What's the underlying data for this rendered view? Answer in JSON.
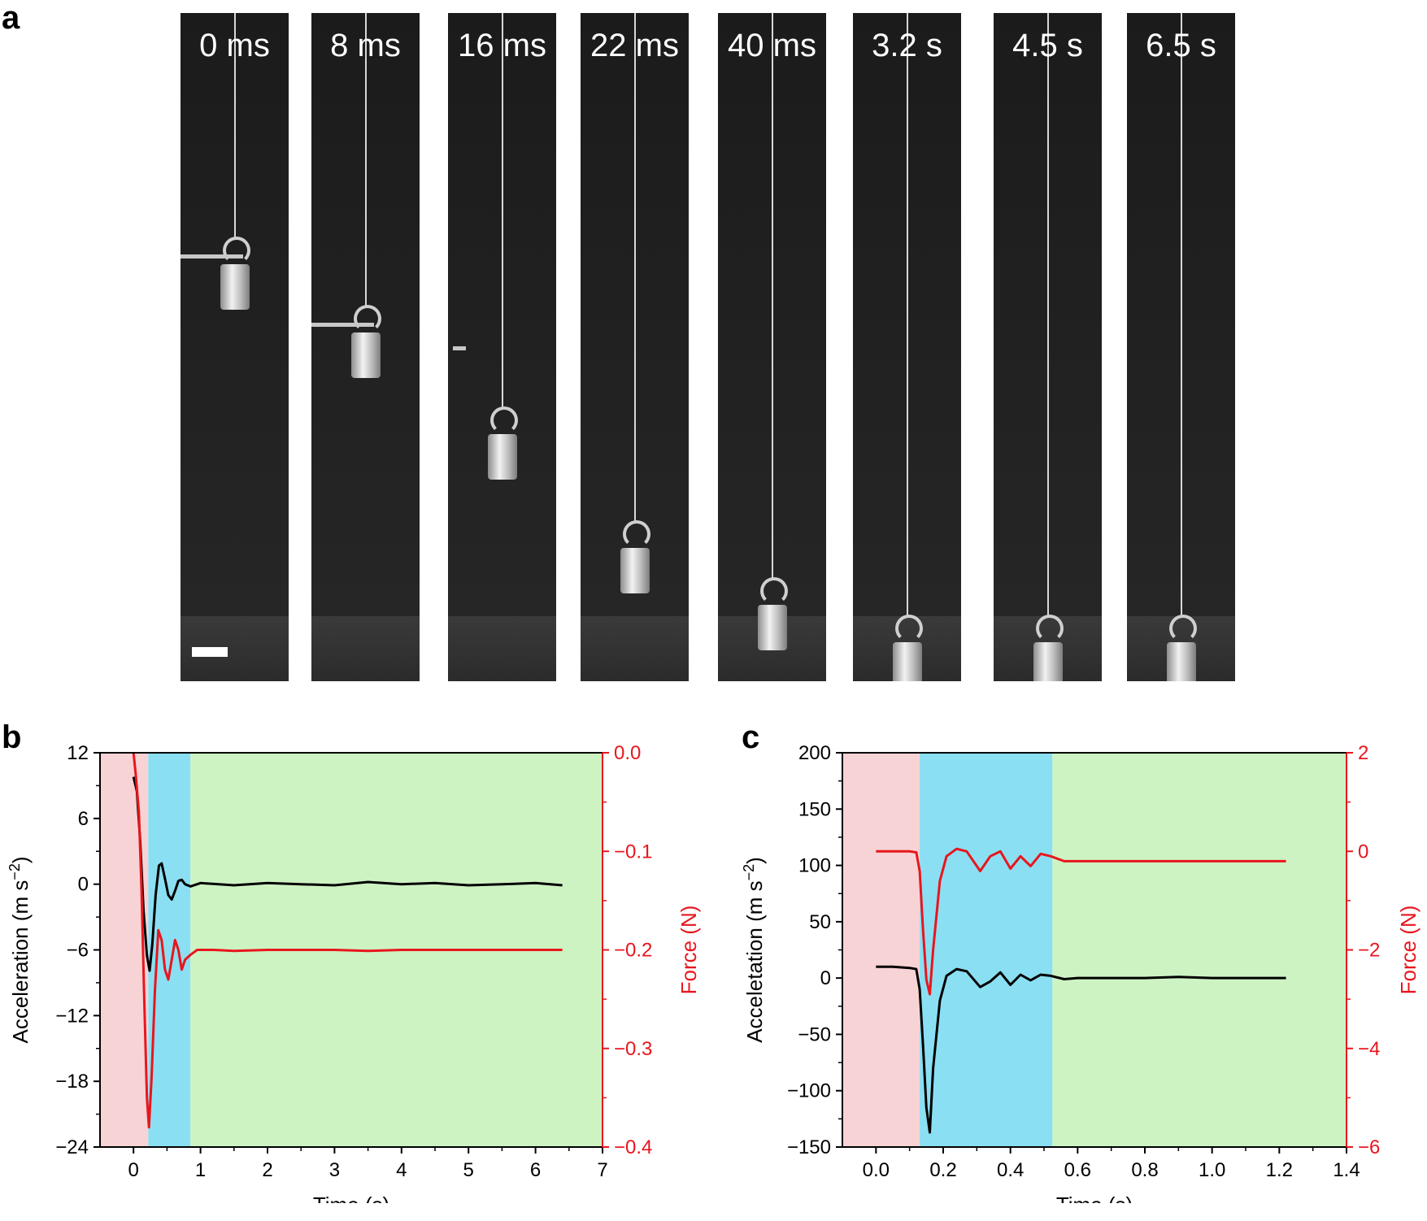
{
  "panels": {
    "a": {
      "letter": "a"
    },
    "b": {
      "letter": "b"
    },
    "c": {
      "letter": "c"
    }
  },
  "frames": [
    {
      "label": "0 ms",
      "drop": 0.0,
      "landed": false,
      "scale_bar": true,
      "blade": "at-hook"
    },
    {
      "label": "8 ms",
      "drop": 0.18,
      "landed": false,
      "scale_bar": false,
      "blade": "at-hook"
    },
    {
      "label": "16 ms",
      "drop": 0.45,
      "landed": false,
      "scale_bar": false,
      "blade": "small"
    },
    {
      "label": "22 ms",
      "drop": 0.75,
      "landed": false,
      "scale_bar": false,
      "blade": "none"
    },
    {
      "label": "40 ms",
      "drop": 0.9,
      "landed": false,
      "scale_bar": false,
      "blade": "none"
    },
    {
      "label": "3.2 s",
      "drop": 1.0,
      "landed": true,
      "scale_bar": false,
      "blade": "none"
    },
    {
      "label": "4.5 s",
      "drop": 1.0,
      "landed": true,
      "scale_bar": false,
      "blade": "none"
    },
    {
      "label": "6.5 s",
      "drop": 1.0,
      "landed": true,
      "scale_bar": false,
      "blade": "none"
    }
  ],
  "colors": {
    "acceleration": "#000000",
    "force": "#e8161d",
    "region_pink": "#f7d3d5",
    "region_blue": "#8bdff3",
    "region_green": "#cdf3c3"
  },
  "chart_data": [
    {
      "id": "b",
      "type": "line",
      "xlabel": "Time (s)",
      "ylabel": "Acceleration (m s−2)",
      "ylabel_parts": {
        "main": "Acceleration (m s",
        "sup": "−2",
        "end": ")"
      },
      "y2label": "Force (N)",
      "xlim": [
        -0.5,
        7
      ],
      "ylim": [
        -24,
        12
      ],
      "y2lim": [
        -0.4,
        0.0
      ],
      "xticks": [
        0,
        1,
        2,
        3,
        4,
        5,
        6,
        7
      ],
      "xtick_labels": [
        "0",
        "1",
        "2",
        "3",
        "4",
        "5",
        "6",
        "7"
      ],
      "yticks": [
        -24,
        -18,
        -12,
        -6,
        0,
        6,
        12
      ],
      "ytick_labels": [
        "−24",
        "−18",
        "−12",
        "−6",
        "0",
        "6",
        "12"
      ],
      "y2ticks": [
        -0.4,
        -0.3,
        -0.2,
        -0.1,
        0.0
      ],
      "y2tick_labels": [
        "−0.4",
        "−0.3",
        "−0.2",
        "−0.1",
        "0.0"
      ],
      "regions": [
        {
          "from": -0.5,
          "to": 0.22,
          "color": "pink"
        },
        {
          "from": 0.22,
          "to": 0.85,
          "color": "blue"
        },
        {
          "from": 0.85,
          "to": 7.0,
          "color": "green"
        }
      ],
      "series": [
        {
          "axis": "left",
          "color": "acceleration",
          "x": [
            0.0,
            0.05,
            0.1,
            0.15,
            0.2,
            0.24,
            0.28,
            0.33,
            0.38,
            0.42,
            0.47,
            0.52,
            0.57,
            0.62,
            0.67,
            0.72,
            0.77,
            0.85,
            1.0,
            1.5,
            2.0,
            2.5,
            3.0,
            3.5,
            4.0,
            4.5,
            5.0,
            5.5,
            6.0,
            6.4
          ],
          "y": [
            9.8,
            8.5,
            4.0,
            -2.5,
            -6.5,
            -7.9,
            -5.5,
            -1.0,
            1.7,
            1.9,
            0.5,
            -1.0,
            -1.4,
            -0.6,
            0.3,
            0.4,
            0.0,
            -0.2,
            0.1,
            -0.1,
            0.1,
            0.0,
            -0.1,
            0.2,
            0.0,
            0.1,
            -0.1,
            0.0,
            0.1,
            -0.1
          ]
        },
        {
          "axis": "right",
          "color": "force",
          "x": [
            0.0,
            0.03,
            0.08,
            0.12,
            0.16,
            0.2,
            0.23,
            0.27,
            0.32,
            0.37,
            0.42,
            0.47,
            0.52,
            0.57,
            0.62,
            0.67,
            0.72,
            0.77,
            0.85,
            0.95,
            1.2,
            1.5,
            2.0,
            2.5,
            3.0,
            3.5,
            4.0,
            5.0,
            6.0,
            6.4
          ],
          "y": [
            0.0,
            -0.02,
            -0.06,
            -0.14,
            -0.25,
            -0.35,
            -0.38,
            -0.33,
            -0.24,
            -0.18,
            -0.19,
            -0.22,
            -0.23,
            -0.21,
            -0.19,
            -0.2,
            -0.22,
            -0.21,
            -0.205,
            -0.2,
            -0.2,
            -0.201,
            -0.2,
            -0.2,
            -0.2,
            -0.201,
            -0.2,
            -0.2,
            -0.2,
            -0.2
          ]
        }
      ]
    },
    {
      "id": "c",
      "type": "line",
      "xlabel": "Time (s)",
      "ylabel": "Acceletation (m s−2)",
      "ylabel_parts": {
        "main": "Acceletation (m s",
        "sup": "−2",
        "end": ")"
      },
      "y2label": "Force (N)",
      "xlim": [
        -0.1,
        1.4
      ],
      "ylim": [
        -150,
        200
      ],
      "y2lim": [
        -6,
        2
      ],
      "xticks": [
        0.0,
        0.2,
        0.4,
        0.6,
        0.8,
        1.0,
        1.2,
        1.4
      ],
      "xtick_labels": [
        "0.0",
        "0.2",
        "0.4",
        "0.6",
        "0.8",
        "1.0",
        "1.2",
        "1.4"
      ],
      "yticks": [
        -150,
        -100,
        -50,
        0,
        50,
        100,
        150,
        200
      ],
      "ytick_labels": [
        "−150",
        "−100",
        "−50",
        "0",
        "50",
        "100",
        "150",
        "200"
      ],
      "y2ticks": [
        -6,
        -4,
        -2,
        0,
        2
      ],
      "y2tick_labels": [
        "−6",
        "−4",
        "−2",
        "0",
        "2"
      ],
      "regions": [
        {
          "from": -0.1,
          "to": 0.13,
          "color": "pink"
        },
        {
          "from": 0.13,
          "to": 0.525,
          "color": "blue"
        },
        {
          "from": 0.525,
          "to": 1.4,
          "color": "green"
        }
      ],
      "series": [
        {
          "axis": "left",
          "color": "acceleration",
          "x": [
            0.0,
            0.05,
            0.1,
            0.12,
            0.13,
            0.14,
            0.15,
            0.16,
            0.17,
            0.19,
            0.21,
            0.24,
            0.27,
            0.31,
            0.34,
            0.37,
            0.4,
            0.43,
            0.46,
            0.49,
            0.52,
            0.56,
            0.6,
            0.7,
            0.8,
            0.9,
            1.0,
            1.1,
            1.22
          ],
          "y": [
            10,
            10,
            9,
            8,
            -10,
            -60,
            -115,
            -137,
            -80,
            -20,
            2,
            8,
            6,
            -8,
            -3,
            5,
            -6,
            3,
            -2,
            3,
            2,
            -1,
            0,
            0,
            0,
            1,
            0,
            0,
            0
          ]
        },
        {
          "axis": "right",
          "color": "force",
          "x": [
            0.0,
            0.05,
            0.1,
            0.12,
            0.13,
            0.14,
            0.15,
            0.16,
            0.17,
            0.19,
            0.21,
            0.24,
            0.27,
            0.31,
            0.34,
            0.37,
            0.4,
            0.43,
            0.46,
            0.49,
            0.52,
            0.56,
            0.6,
            0.7,
            0.8,
            0.9,
            1.0,
            1.1,
            1.22
          ],
          "y": [
            0.0,
            0.0,
            0.0,
            -0.02,
            -0.4,
            -1.6,
            -2.6,
            -2.9,
            -2.0,
            -0.6,
            -0.1,
            0.05,
            0.0,
            -0.4,
            -0.1,
            0.0,
            -0.35,
            -0.1,
            -0.3,
            -0.05,
            -0.1,
            -0.2,
            -0.2,
            -0.2,
            -0.2,
            -0.2,
            -0.2,
            -0.2,
            -0.2
          ]
        }
      ]
    }
  ]
}
